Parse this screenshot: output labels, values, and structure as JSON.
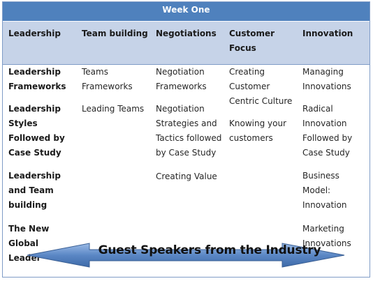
{
  "title": "Week One",
  "headers": [
    "Leadership",
    "Team building",
    "Negotiations",
    "Customer Focus",
    "Innovation"
  ],
  "columns": {
    "leadership": [
      "Leadership Frameworks",
      "Leadership Styles Followed by Case Study",
      "Leadership and Team building",
      "The New Global Leader"
    ],
    "team_building": [
      "Teams Frameworks",
      "Leading Teams"
    ],
    "negotiations": [
      "Negotiation Frameworks",
      "Negotiation Strategies and Tactics followed by Case Study",
      "Creating Value"
    ],
    "customer_focus": [
      "Creating Customer Centric Culture",
      "Knowing your customers"
    ],
    "innovation": [
      "Managing Innovations",
      "Radical Innovation Followed by Case Study",
      "Business Model: Innovation",
      "Marketing Innovations"
    ]
  },
  "banner": "Guest Speakers from the Industry",
  "colors": {
    "title_bar": "#4f81bd",
    "header_row": "#c6d3e8",
    "arrow_fill": "#5b87c5",
    "arrow_border": "#3a5f94"
  }
}
